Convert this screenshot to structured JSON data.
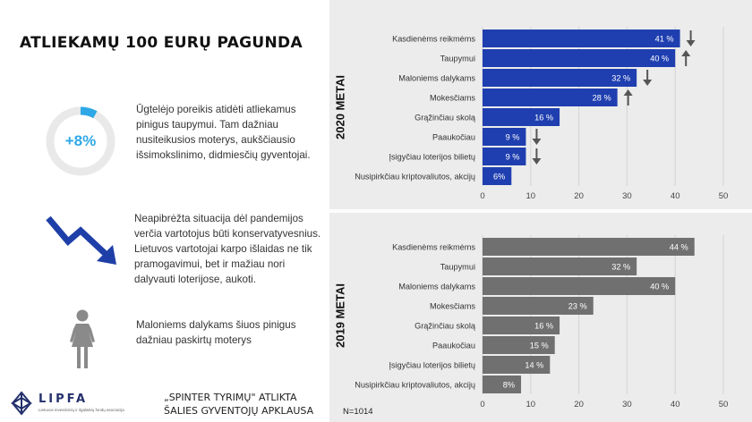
{
  "left": {
    "title": "ATLIEKAMŲ 100 EURŲ PAGUNDA",
    "stat": {
      "label": "+8%",
      "fraction": 0.08,
      "color": "#2ea8e6"
    },
    "texts": [
      "Ūgtelėjo poreikis atidėti atliekamus pinigus taupymui.  Tam dažniau nusiteikusios moterys, aukščiausio išsimokslinimo, didmiesčių gyventojai.",
      "Neapibrėžta situacija dėl pandemijos  verčia vartotojus būti konservatyvesnius. Lietuvos vartotojai karpo išlaidas ne tik pramogavimui, bet ir mažiau nori dalyvauti loterijose, aukoti.",
      "Maloniems dalykams šiuos pinigus dažniau paskirtų moterys"
    ],
    "icons": [
      "circle-progress-icon",
      "trend-down-arrow-icon",
      "woman-icon"
    ],
    "source_lines": [
      "„SPINTER TYRIMŲ\" ATLIKTA",
      "ŠALIES GYVENTOJŲ APKLAUSA"
    ],
    "n": "N=1014",
    "logo": {
      "name": "LIPFA",
      "subtitle": "Lietuvos investicinių ir ilgalaikių fondų asociacija"
    }
  },
  "colors": {
    "bar2020": "#1f3fb0",
    "bar2019": "#707070",
    "arrow": "#555555",
    "ring_track": "#e9e9e9",
    "trend_arrow": "#1f3fa8"
  },
  "chart_data": [
    {
      "type": "bar",
      "orientation": "horizontal",
      "title": "2020 METAI",
      "categories": [
        "Kasdienėms reikmėms",
        "Taupymui",
        "Maloniems dalykams",
        "Mokesčiams",
        "Grąžinčiau skolą",
        "Paaukočiau",
        "Įsigyčiau loterijos bilietų",
        "Nusipirkčiau kriptovaliutos, akcijų"
      ],
      "values": [
        41,
        40,
        32,
        28,
        16,
        9,
        9,
        6
      ],
      "labels": [
        "41 %",
        "40 %",
        "32 %",
        "28 %",
        "16 %",
        "9 %",
        "9 %",
        "6%"
      ],
      "change_vs_previous": [
        "down",
        "up",
        "down",
        "up",
        "",
        "down",
        "down",
        ""
      ],
      "xlim": [
        0,
        50
      ],
      "xticks": [
        0,
        10,
        20,
        30,
        40,
        50
      ],
      "grid": true
    },
    {
      "type": "bar",
      "orientation": "horizontal",
      "title": "2019 METAI",
      "categories": [
        "Kasdienėms reikmėms",
        "Taupymui",
        "Maloniems dalykams",
        "Mokesčiams",
        "Grąžinčiau skolą",
        "Paaukočiau",
        "Įsigyčiau loterijos bilietų",
        "Nusipirkčiau kriptovaliutos, akcijų"
      ],
      "values": [
        44,
        32,
        40,
        23,
        16,
        15,
        14,
        8
      ],
      "labels": [
        "44 %",
        "32 %",
        "40 %",
        "23 %",
        "16 %",
        "15 %",
        "14 %",
        "8%"
      ],
      "xlim": [
        0,
        50
      ],
      "xticks": [
        0,
        10,
        20,
        30,
        40,
        50
      ],
      "grid": true
    }
  ]
}
